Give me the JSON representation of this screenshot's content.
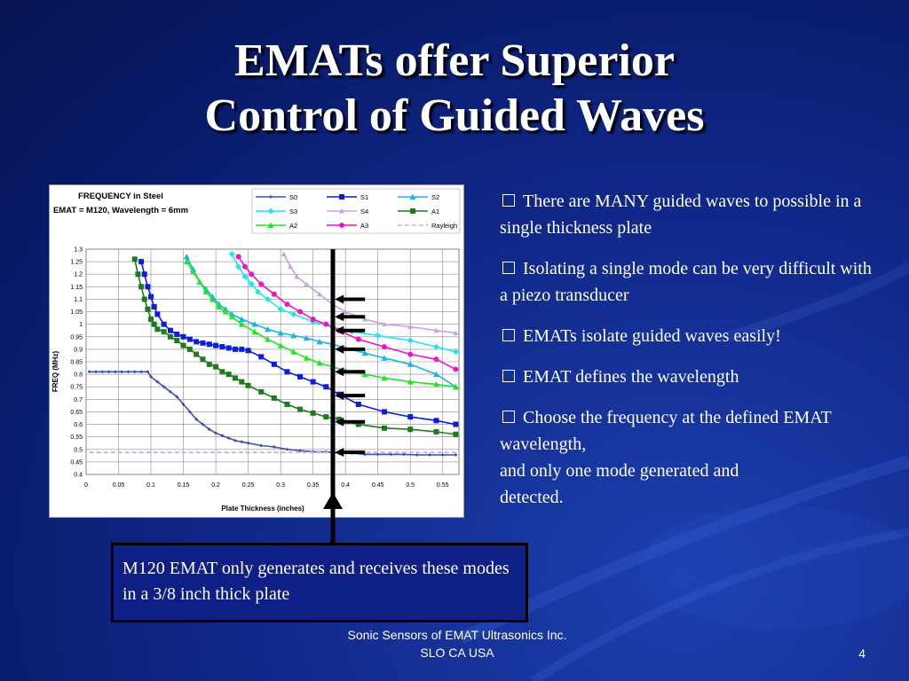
{
  "slide": {
    "title_line1": "EMATs offer Superior",
    "title_line2": "Control of Guided Waves",
    "bullets": [
      "There are MANY guided waves to possible in a single thickness plate",
      "Isolating  a single mode can be very difficult with a piezo transducer",
      "EMATs isolate guided waves easily!",
      "EMAT defines the wavelength",
      "Choose the frequency at the defined EMAT wavelength,"
    ],
    "bullet_continuation": [
      "and only one mode generated and",
      "detected."
    ],
    "callout_text": "M120 EMAT only generates and receives these modes in a 3/8 inch thick plate",
    "footer_line1": "Sonic Sensors of EMAT Ultrasonics Inc.",
    "footer_line2": "SLO CA USA",
    "slide_number": "4"
  },
  "chart_data": {
    "type": "line",
    "title": "FREQUENCY in Steel",
    "subtitle": "EMAT = M120,  Wavelength = 6mm",
    "xlabel": "Plate Thickness (inches)",
    "ylabel": "FREQ (MHz)",
    "xlim": [
      0,
      0.575
    ],
    "ylim": [
      0.4,
      1.3
    ],
    "xticks": [
      "0",
      "0.05",
      "0.1",
      "0.15",
      "0.2",
      "0.25",
      "0.3",
      "0.35",
      "0.4",
      "0.45",
      "0.5",
      "0.55"
    ],
    "yticks": [
      "0.4",
      "0.45",
      "0.5",
      "0.55",
      "0.6",
      "0.65",
      "0.7",
      "0.75",
      "0.8",
      "0.85",
      "0.9",
      "0.95",
      "1",
      "1.05",
      "1.1",
      "1.15",
      "1.2",
      "1.25",
      "1.3"
    ],
    "grid": true,
    "legend_position": "top-right",
    "marker_line_x": 0.385,
    "series": [
      {
        "name": "S0",
        "color": "#3c50b4",
        "marker": "diamond-small",
        "x": [
          0.005,
          0.015,
          0.025,
          0.035,
          0.045,
          0.055,
          0.065,
          0.075,
          0.085,
          0.095,
          0.1,
          0.11,
          0.12,
          0.13,
          0.14,
          0.15,
          0.16,
          0.17,
          0.18,
          0.19,
          0.2,
          0.21,
          0.22,
          0.23,
          0.24,
          0.25,
          0.27,
          0.29,
          0.31,
          0.33,
          0.35,
          0.37,
          0.39,
          0.41,
          0.43,
          0.45,
          0.47,
          0.49,
          0.51,
          0.53,
          0.55,
          0.57
        ],
        "y": [
          0.81,
          0.81,
          0.81,
          0.81,
          0.81,
          0.81,
          0.81,
          0.81,
          0.81,
          0.81,
          0.79,
          0.77,
          0.75,
          0.73,
          0.71,
          0.68,
          0.65,
          0.62,
          0.6,
          0.58,
          0.565,
          0.555,
          0.545,
          0.535,
          0.53,
          0.525,
          0.515,
          0.51,
          0.5,
          0.495,
          0.49,
          0.49,
          0.485,
          0.485,
          0.48,
          0.48,
          0.48,
          0.48,
          0.478,
          0.478,
          0.478,
          0.478
        ]
      },
      {
        "name": "S1",
        "color": "#0a1edc",
        "marker": "square",
        "x": [
          0.085,
          0.09,
          0.095,
          0.1,
          0.105,
          0.11,
          0.12,
          0.13,
          0.14,
          0.15,
          0.16,
          0.17,
          0.18,
          0.19,
          0.2,
          0.21,
          0.22,
          0.23,
          0.24,
          0.25,
          0.27,
          0.29,
          0.31,
          0.33,
          0.35,
          0.37,
          0.39,
          0.42,
          0.46,
          0.5,
          0.54,
          0.57
        ],
        "y": [
          1.25,
          1.2,
          1.15,
          1.11,
          1.07,
          1.04,
          1.0,
          0.975,
          0.96,
          0.95,
          0.94,
          0.93,
          0.925,
          0.92,
          0.915,
          0.91,
          0.905,
          0.9,
          0.9,
          0.895,
          0.87,
          0.84,
          0.81,
          0.79,
          0.77,
          0.75,
          0.72,
          0.68,
          0.65,
          0.63,
          0.615,
          0.6
        ]
      },
      {
        "name": "S2",
        "color": "#18b4ec",
        "marker": "triangle",
        "x": [
          0.155,
          0.165,
          0.175,
          0.185,
          0.195,
          0.205,
          0.215,
          0.225,
          0.24,
          0.26,
          0.28,
          0.3,
          0.32,
          0.34,
          0.36,
          0.38,
          0.4,
          0.43,
          0.46,
          0.5,
          0.54,
          0.57
        ],
        "y": [
          1.27,
          1.22,
          1.17,
          1.14,
          1.11,
          1.08,
          1.06,
          1.04,
          1.02,
          1.0,
          0.98,
          0.965,
          0.955,
          0.945,
          0.93,
          0.92,
          0.905,
          0.885,
          0.865,
          0.84,
          0.8,
          0.75
        ]
      },
      {
        "name": "S3",
        "color": "#1ee6ec",
        "marker": "diamond",
        "x": [
          0.225,
          0.235,
          0.245,
          0.255,
          0.265,
          0.28,
          0.3,
          0.32,
          0.35,
          0.38,
          0.41,
          0.45,
          0.5,
          0.54,
          0.57
        ],
        "y": [
          1.28,
          1.23,
          1.19,
          1.16,
          1.13,
          1.1,
          1.06,
          1.04,
          1.01,
          0.99,
          0.97,
          0.955,
          0.935,
          0.91,
          0.89
        ]
      },
      {
        "name": "S4",
        "color": "#c8a0e6",
        "marker": "x",
        "x": [
          0.305,
          0.315,
          0.325,
          0.34,
          0.36,
          0.38,
          0.4,
          0.43,
          0.46,
          0.5,
          0.54,
          0.57
        ],
        "y": [
          1.28,
          1.23,
          1.19,
          1.16,
          1.12,
          1.08,
          1.05,
          1.02,
          1.0,
          0.99,
          0.975,
          0.965
        ]
      },
      {
        "name": "A1",
        "color": "#1e7a1e",
        "marker": "square",
        "x": [
          0.075,
          0.08,
          0.085,
          0.09,
          0.095,
          0.1,
          0.105,
          0.11,
          0.12,
          0.13,
          0.14,
          0.15,
          0.16,
          0.17,
          0.18,
          0.19,
          0.2,
          0.21,
          0.22,
          0.23,
          0.24,
          0.25,
          0.27,
          0.29,
          0.31,
          0.33,
          0.35,
          0.37,
          0.39,
          0.42,
          0.46,
          0.5,
          0.54,
          0.57
        ],
        "y": [
          1.26,
          1.2,
          1.15,
          1.1,
          1.06,
          1.02,
          1.0,
          0.98,
          0.97,
          0.95,
          0.935,
          0.915,
          0.9,
          0.88,
          0.86,
          0.84,
          0.83,
          0.81,
          0.8,
          0.785,
          0.77,
          0.755,
          0.73,
          0.705,
          0.68,
          0.66,
          0.645,
          0.63,
          0.62,
          0.6,
          0.585,
          0.58,
          0.57,
          0.56
        ]
      },
      {
        "name": "A2",
        "color": "#22e622",
        "marker": "triangle",
        "x": [
          0.155,
          0.165,
          0.175,
          0.185,
          0.195,
          0.205,
          0.215,
          0.225,
          0.24,
          0.26,
          0.28,
          0.3,
          0.32,
          0.34,
          0.36,
          0.38,
          0.4,
          0.43,
          0.46,
          0.5,
          0.54,
          0.57
        ],
        "y": [
          1.25,
          1.21,
          1.17,
          1.13,
          1.1,
          1.07,
          1.05,
          1.03,
          1.0,
          0.97,
          0.94,
          0.915,
          0.89,
          0.865,
          0.845,
          0.83,
          0.815,
          0.8,
          0.785,
          0.77,
          0.76,
          0.75
        ]
      },
      {
        "name": "A3",
        "color": "#ec14c8",
        "marker": "circle",
        "x": [
          0.235,
          0.245,
          0.255,
          0.27,
          0.29,
          0.31,
          0.33,
          0.35,
          0.37,
          0.39,
          0.42,
          0.46,
          0.5,
          0.54,
          0.57
        ],
        "y": [
          1.27,
          1.23,
          1.2,
          1.16,
          1.12,
          1.08,
          1.05,
          1.02,
          1.0,
          0.975,
          0.94,
          0.91,
          0.88,
          0.86,
          0.82
        ]
      },
      {
        "name": "Rayleigh",
        "color": "#c8b4dc",
        "marker": "none",
        "dashed": true,
        "x": [
          0.005,
          0.575
        ],
        "y": [
          0.488,
          0.488
        ]
      }
    ]
  }
}
